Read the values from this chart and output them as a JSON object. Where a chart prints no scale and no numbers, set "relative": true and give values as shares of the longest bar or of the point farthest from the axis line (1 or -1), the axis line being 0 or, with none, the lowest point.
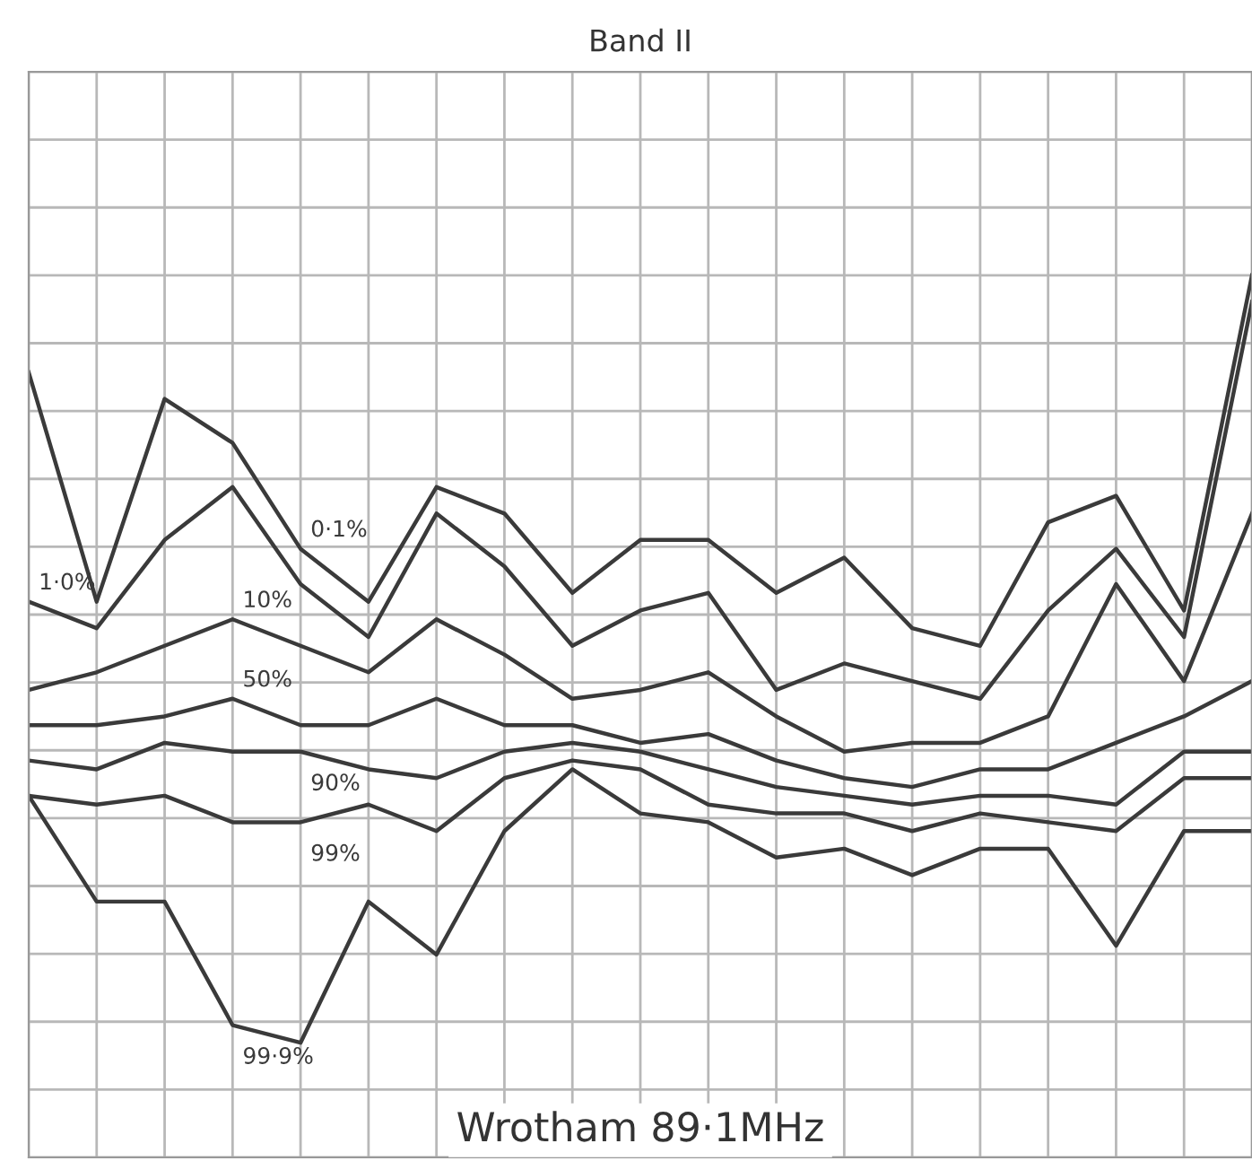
{
  "chart_data": {
    "type": "line",
    "title": "Band II",
    "relative": true,
    "grid": true,
    "legend": false,
    "marker": "none",
    "line_style": "solid",
    "categories": [
      null,
      null,
      null,
      null,
      null,
      null,
      null,
      null,
      null,
      null,
      null,
      null,
      null,
      null,
      null,
      null,
      null,
      null,
      null
    ],
    "series": [
      {
        "name": "0·1%",
        "color": "#3a3a3a",
        "values": [
          0.89,
          0.63,
          0.86,
          0.81,
          0.69,
          0.63,
          0.76,
          0.73,
          0.64,
          0.7,
          0.7,
          0.64,
          0.68,
          0.6,
          0.58,
          0.72,
          0.75,
          0.62,
          1
        ]
      },
      {
        "name": "1·0%",
        "color": "#3a3a3a",
        "values": [
          0.63,
          0.6,
          0.7,
          0.76,
          0.65,
          0.59,
          0.73,
          0.67,
          0.58,
          0.62,
          0.64,
          0.53,
          0.56,
          0.54,
          0.52,
          0.62,
          0.69,
          0.59,
          0.97
        ]
      },
      {
        "name": "10%",
        "color": "#3a3a3a",
        "values": [
          0.53,
          0.55,
          0.58,
          0.61,
          0.58,
          0.55,
          0.61,
          0.57,
          0.52,
          0.53,
          0.55,
          0.5,
          0.46,
          0.47,
          0.47,
          0.5,
          0.65,
          0.54,
          0.73
        ]
      },
      {
        "name": "50%",
        "color": "#3a3a3a",
        "values": [
          0.49,
          0.49,
          0.5,
          0.52,
          0.49,
          0.49,
          0.52,
          0.49,
          0.49,
          0.47,
          0.48,
          0.45,
          0.43,
          0.42,
          0.44,
          0.44,
          0.47,
          0.5,
          0.54
        ]
      },
      {
        "name": "90%",
        "color": "#3a3a3a",
        "values": [
          0.45,
          0.44,
          0.47,
          0.46,
          0.46,
          0.44,
          0.43,
          0.46,
          0.47,
          0.46,
          0.44,
          0.42,
          0.41,
          0.4,
          0.41,
          0.41,
          0.4,
          0.46,
          0.46
        ]
      },
      {
        "name": "99%",
        "color": "#3a3a3a",
        "values": [
          0.41,
          0.4,
          0.41,
          0.38,
          0.38,
          0.4,
          0.37,
          0.43,
          0.45,
          0.44,
          0.4,
          0.39,
          0.39,
          0.37,
          0.39,
          0.38,
          0.37,
          0.43,
          0.43
        ]
      },
      {
        "name": "99·9%",
        "color": "#3a3a3a",
        "values": [
          0.41,
          0.29,
          0.29,
          0.15,
          0.13,
          0.29,
          0.23,
          0.37,
          0.44,
          0.39,
          0.38,
          0.34,
          0.35,
          0.32,
          0.35,
          0.35,
          0.24,
          0.37,
          0.37
        ]
      }
    ],
    "annotations": [
      "Wrotham 89·1MHz"
    ]
  }
}
